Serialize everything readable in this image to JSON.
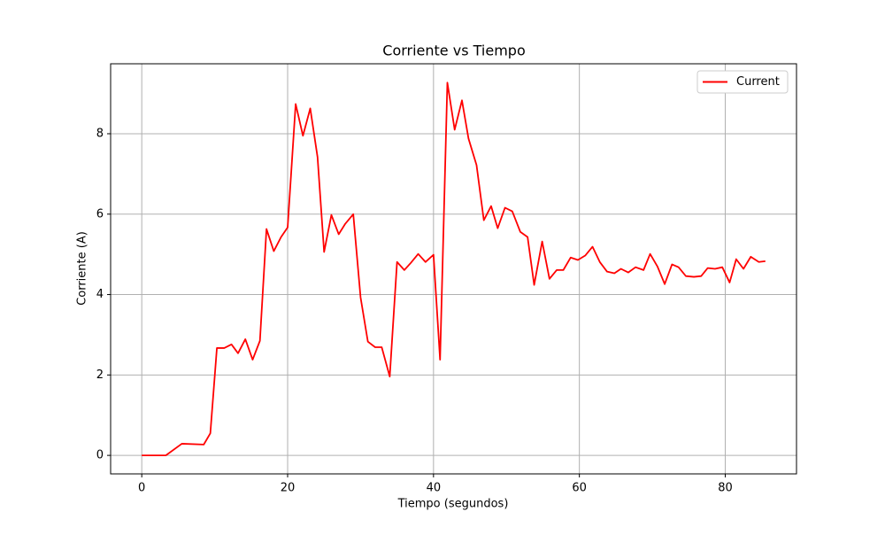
{
  "chart_data": {
    "type": "line",
    "title": "Corriente vs Tiempo",
    "x_label": "Tiempo (segundos)",
    "y_label": "Corriente (A)",
    "x": [
      0,
      3.3,
      5.5,
      8.5,
      9.4,
      10.3,
      11.3,
      12.3,
      13.2,
      14.2,
      15.2,
      16.2,
      17.1,
      18.1,
      19.1,
      20.0,
      21.1,
      22.1,
      23.1,
      24.1,
      25.0,
      26.0,
      27.0,
      27.9,
      29.0,
      30.0,
      31.0,
      32.0,
      32.9,
      34.0,
      35.0,
      36.0,
      36.9,
      37.9,
      38.9,
      40.0,
      40.9,
      41.9,
      42.9,
      43.9,
      44.8,
      45.9,
      46.9,
      47.9,
      48.8,
      49.8,
      50.8,
      51.9,
      52.9,
      53.8,
      54.9,
      55.9,
      56.9,
      57.8,
      58.8,
      59.8,
      60.8,
      61.8,
      62.8,
      63.8,
      64.8,
      65.7,
      66.7,
      67.7,
      68.8,
      69.7,
      70.7,
      71.7,
      72.7,
      73.6,
      74.6,
      75.7,
      76.7,
      77.6,
      78.6,
      79.6,
      80.6,
      81.5,
      82.5,
      83.5,
      84.6,
      85.5
    ],
    "series": [
      {
        "name": "Current",
        "color": "#ff0000",
        "values": [
          0,
          0,
          0.29,
          0.27,
          0.55,
          2.67,
          2.67,
          2.76,
          2.54,
          2.89,
          2.38,
          2.85,
          5.63,
          5.08,
          5.43,
          5.67,
          8.74,
          7.95,
          8.63,
          7.42,
          5.06,
          5.98,
          5.5,
          5.76,
          6.0,
          3.93,
          2.83,
          2.69,
          2.69,
          1.96,
          4.81,
          4.61,
          4.79,
          5.01,
          4.81,
          4.99,
          2.38,
          9.27,
          8.1,
          8.83,
          7.88,
          7.22,
          5.85,
          6.2,
          5.65,
          6.16,
          6.07,
          5.56,
          5.43,
          4.24,
          5.32,
          4.39,
          4.61,
          4.61,
          4.92,
          4.86,
          4.97,
          5.19,
          4.81,
          4.57,
          4.53,
          4.64,
          4.55,
          4.68,
          4.61,
          5.01,
          4.7,
          4.26,
          4.75,
          4.68,
          4.46,
          4.44,
          4.46,
          4.66,
          4.64,
          4.68,
          4.3,
          4.88,
          4.64,
          4.94,
          4.81,
          4.83
        ]
      }
    ],
    "xlim": [
      -4.27,
      89.77
    ],
    "ylim": [
      -0.46,
      9.74
    ],
    "xticks": [
      0,
      20,
      40,
      60,
      80
    ],
    "yticks": [
      0,
      2,
      4,
      6,
      8
    ],
    "grid": true,
    "legend": "upper-right"
  }
}
